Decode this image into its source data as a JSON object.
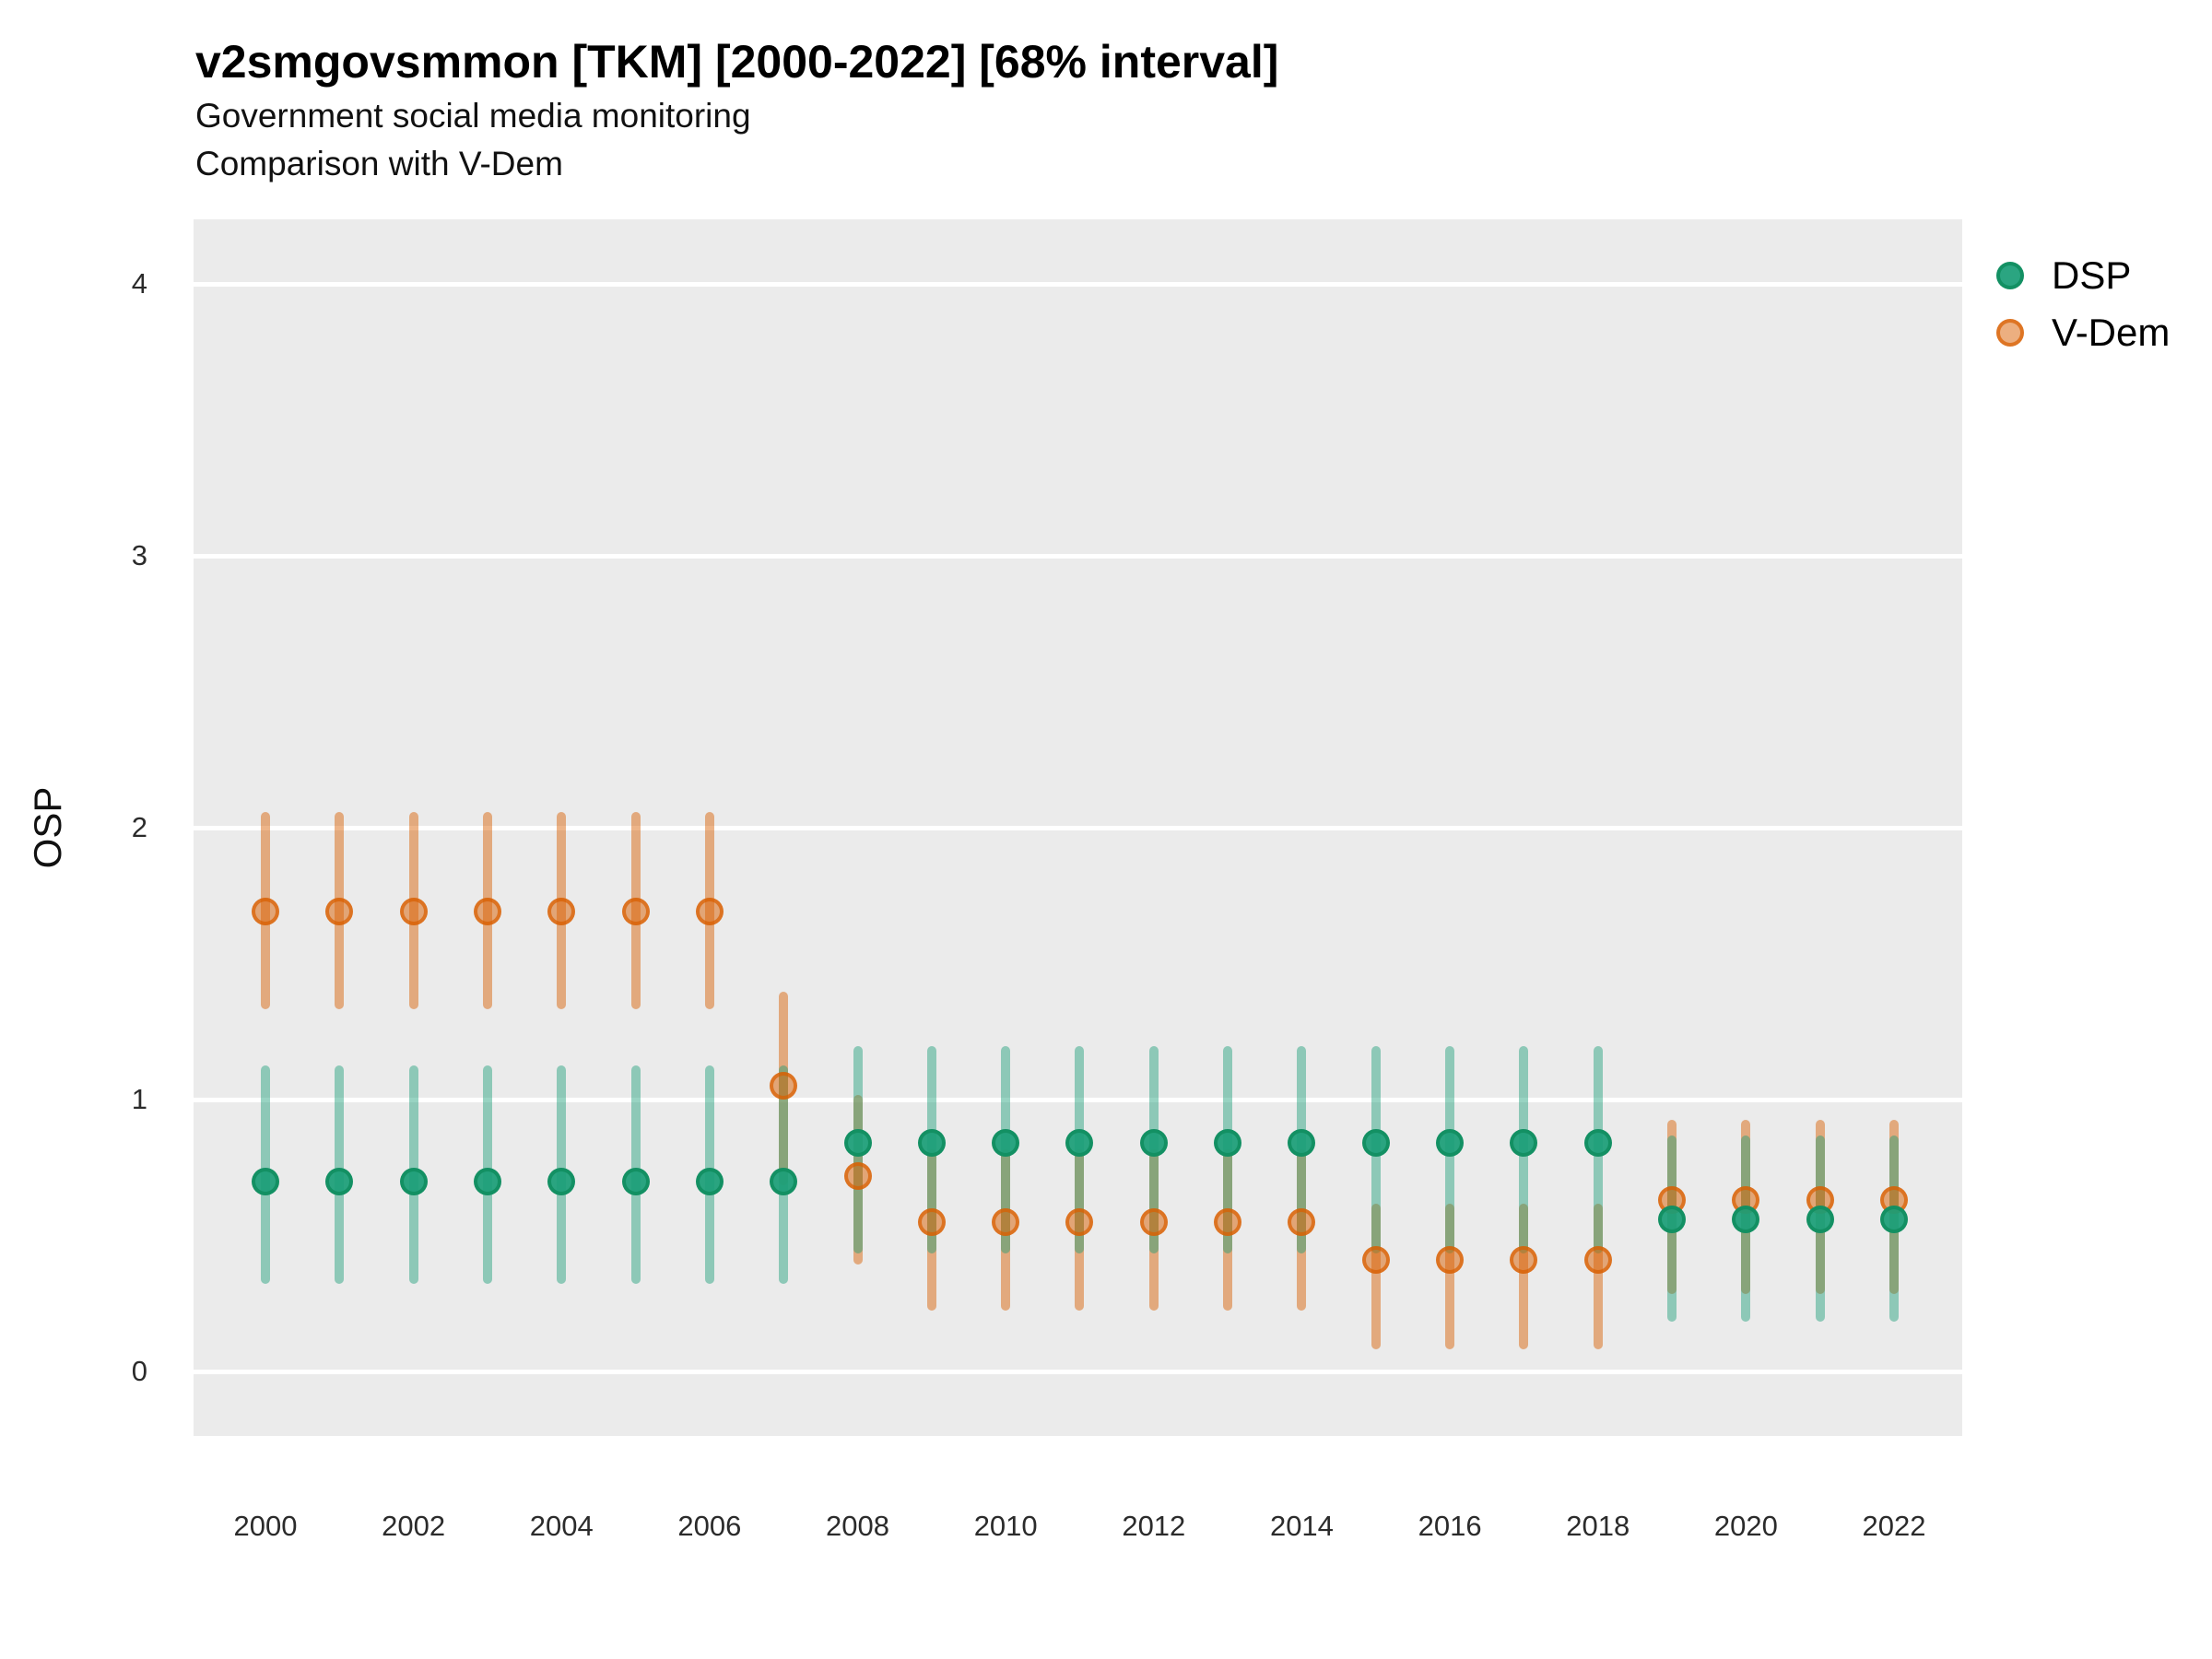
{
  "header": {
    "title": "v2smgovsmmon [TKM] [2000-2022] [68% interval]",
    "subtitle_line1": "Government social media monitoring",
    "subtitle_line2": "Comparison with V-Dem"
  },
  "colors": {
    "dsp": "#1B9E77",
    "vdem": "#D95F02",
    "panel_background": "#EBEBEB",
    "gridline": "#FFFFFF"
  },
  "legend": {
    "items": [
      {
        "label": "DSP"
      },
      {
        "label": "V-Dem"
      }
    ]
  },
  "chart_data": {
    "type": "scatter",
    "title": "v2smgovsmmon [TKM] [2000-2022] [68% interval]",
    "subtitle": [
      "Government social media monitoring",
      "Comparison with V-Dem"
    ],
    "xlabel": "",
    "ylabel": "OSP",
    "interval": "68%",
    "grid": "on",
    "legend_position": "right-top",
    "x_tick_labels": [
      2000,
      2002,
      2004,
      2006,
      2008,
      2010,
      2012,
      2014,
      2016,
      2018,
      2020,
      2022
    ],
    "y_tick_labels": [
      0,
      1,
      2,
      3,
      4
    ],
    "xlim": [
      1999,
      2023
    ],
    "ylim": [
      -0.22,
      4.24
    ],
    "series": [
      {
        "name": "DSP",
        "color": "#1B9E77",
        "points": [
          {
            "year": 2000,
            "est": 0.7,
            "lo": 0.34,
            "hi": 1.11
          },
          {
            "year": 2001,
            "est": 0.7,
            "lo": 0.34,
            "hi": 1.11
          },
          {
            "year": 2002,
            "est": 0.7,
            "lo": 0.34,
            "hi": 1.11
          },
          {
            "year": 2003,
            "est": 0.7,
            "lo": 0.34,
            "hi": 1.11
          },
          {
            "year": 2004,
            "est": 0.7,
            "lo": 0.34,
            "hi": 1.11
          },
          {
            "year": 2005,
            "est": 0.7,
            "lo": 0.34,
            "hi": 1.11
          },
          {
            "year": 2006,
            "est": 0.7,
            "lo": 0.34,
            "hi": 1.11
          },
          {
            "year": 2007,
            "est": 0.7,
            "lo": 0.34,
            "hi": 1.11
          },
          {
            "year": 2008,
            "est": 0.84,
            "lo": 0.45,
            "hi": 1.18
          },
          {
            "year": 2009,
            "est": 0.84,
            "lo": 0.45,
            "hi": 1.18
          },
          {
            "year": 2010,
            "est": 0.84,
            "lo": 0.45,
            "hi": 1.18
          },
          {
            "year": 2011,
            "est": 0.84,
            "lo": 0.45,
            "hi": 1.18
          },
          {
            "year": 2012,
            "est": 0.84,
            "lo": 0.45,
            "hi": 1.18
          },
          {
            "year": 2013,
            "est": 0.84,
            "lo": 0.45,
            "hi": 1.18
          },
          {
            "year": 2014,
            "est": 0.84,
            "lo": 0.45,
            "hi": 1.18
          },
          {
            "year": 2015,
            "est": 0.84,
            "lo": 0.45,
            "hi": 1.18
          },
          {
            "year": 2016,
            "est": 0.84,
            "lo": 0.45,
            "hi": 1.18
          },
          {
            "year": 2017,
            "est": 0.84,
            "lo": 0.45,
            "hi": 1.18
          },
          {
            "year": 2018,
            "est": 0.84,
            "lo": 0.45,
            "hi": 1.18
          },
          {
            "year": 2019,
            "est": 0.56,
            "lo": 0.2,
            "hi": 0.85
          },
          {
            "year": 2020,
            "est": 0.56,
            "lo": 0.2,
            "hi": 0.85
          },
          {
            "year": 2021,
            "est": 0.56,
            "lo": 0.2,
            "hi": 0.85
          },
          {
            "year": 2022,
            "est": 0.56,
            "lo": 0.2,
            "hi": 0.85
          }
        ]
      },
      {
        "name": "V-Dem",
        "color": "#D95F02",
        "points": [
          {
            "year": 2000,
            "est": 1.69,
            "lo": 1.35,
            "hi": 2.04
          },
          {
            "year": 2001,
            "est": 1.69,
            "lo": 1.35,
            "hi": 2.04
          },
          {
            "year": 2002,
            "est": 1.69,
            "lo": 1.35,
            "hi": 2.04
          },
          {
            "year": 2003,
            "est": 1.69,
            "lo": 1.35,
            "hi": 2.04
          },
          {
            "year": 2004,
            "est": 1.69,
            "lo": 1.35,
            "hi": 2.04
          },
          {
            "year": 2005,
            "est": 1.69,
            "lo": 1.35,
            "hi": 2.04
          },
          {
            "year": 2006,
            "est": 1.69,
            "lo": 1.35,
            "hi": 2.04
          },
          {
            "year": 2007,
            "est": 1.05,
            "lo": 0.7,
            "hi": 1.38
          },
          {
            "year": 2008,
            "est": 0.72,
            "lo": 0.41,
            "hi": 1.0
          },
          {
            "year": 2009,
            "est": 0.55,
            "lo": 0.24,
            "hi": 0.8
          },
          {
            "year": 2010,
            "est": 0.55,
            "lo": 0.24,
            "hi": 0.8
          },
          {
            "year": 2011,
            "est": 0.55,
            "lo": 0.24,
            "hi": 0.8
          },
          {
            "year": 2012,
            "est": 0.55,
            "lo": 0.24,
            "hi": 0.8
          },
          {
            "year": 2013,
            "est": 0.55,
            "lo": 0.24,
            "hi": 0.8
          },
          {
            "year": 2014,
            "est": 0.55,
            "lo": 0.24,
            "hi": 0.8
          },
          {
            "year": 2015,
            "est": 0.41,
            "lo": 0.1,
            "hi": 0.6
          },
          {
            "year": 2016,
            "est": 0.41,
            "lo": 0.1,
            "hi": 0.6
          },
          {
            "year": 2017,
            "est": 0.41,
            "lo": 0.1,
            "hi": 0.6
          },
          {
            "year": 2018,
            "est": 0.41,
            "lo": 0.1,
            "hi": 0.6
          },
          {
            "year": 2019,
            "est": 0.63,
            "lo": 0.3,
            "hi": 0.91
          },
          {
            "year": 2020,
            "est": 0.63,
            "lo": 0.3,
            "hi": 0.91
          },
          {
            "year": 2021,
            "est": 0.63,
            "lo": 0.3,
            "hi": 0.91
          },
          {
            "year": 2022,
            "est": 0.63,
            "lo": 0.3,
            "hi": 0.91
          }
        ]
      }
    ]
  }
}
